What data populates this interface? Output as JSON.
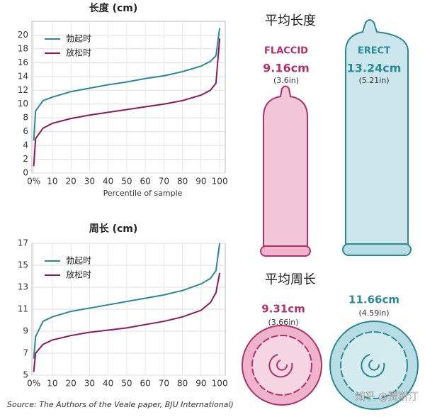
{
  "chart_data": [
    {
      "type": "line",
      "title": "长度 (cm)",
      "x_label": "Percentile of sample",
      "x": [
        0,
        1,
        5,
        10,
        20,
        30,
        40,
        50,
        60,
        70,
        80,
        90,
        95,
        98,
        100
      ],
      "series": [
        {
          "name": "勃起时",
          "color": "#2a8a94",
          "values": [
            4.7,
            9,
            10.5,
            11,
            11.8,
            12.3,
            12.8,
            13.2,
            13.7,
            14.1,
            14.7,
            15.5,
            16.2,
            17,
            21
          ]
        },
        {
          "name": "放松时",
          "color": "#8b1a5c",
          "values": [
            1,
            5,
            6.5,
            7.2,
            7.9,
            8.4,
            8.8,
            9.2,
            9.6,
            10,
            10.5,
            11.3,
            12,
            13,
            19.5
          ]
        }
      ],
      "xlim": [
        -1,
        103
      ],
      "ylim": [
        0,
        22
      ],
      "xticks": [
        {
          "value": 0,
          "label": "0%"
        },
        10,
        20,
        30,
        40,
        50,
        60,
        70,
        80,
        90,
        100
      ],
      "yticks": [
        0,
        2,
        4,
        6,
        8,
        10,
        12,
        14,
        16,
        18,
        20
      ],
      "grid": true,
      "legend": "upper left"
    },
    {
      "type": "line",
      "title": "周长 (cm)",
      "x": [
        0,
        1,
        5,
        10,
        20,
        30,
        40,
        50,
        60,
        70,
        80,
        90,
        95,
        98,
        100
      ],
      "series": [
        {
          "name": "勃起时",
          "color": "#2a8a94",
          "values": [
            6.5,
            8.5,
            9.9,
            10.3,
            10.8,
            11.1,
            11.4,
            11.7,
            12,
            12.3,
            12.7,
            13.3,
            13.8,
            14.5,
            17
          ]
        },
        {
          "name": "放松时",
          "color": "#8b1a5c",
          "values": [
            5.3,
            7,
            7.8,
            8.2,
            8.6,
            8.9,
            9.1,
            9.3,
            9.6,
            9.9,
            10.3,
            10.9,
            11.6,
            12.5,
            14.3
          ]
        }
      ],
      "xlim": [
        -1,
        103
      ],
      "ylim": [
        5,
        17
      ],
      "xticks": [
        {
          "value": 0,
          "label": "0%"
        },
        10,
        20,
        30,
        40,
        50,
        60,
        70,
        80,
        90,
        100
      ],
      "yticks": [
        5,
        7,
        9,
        11,
        13,
        15,
        17
      ],
      "grid": true,
      "legend": "upper left"
    }
  ],
  "length": {
    "title": "平均长度",
    "flaccid": {
      "label": "FLACCID",
      "cm": "9.16cm",
      "in": "(3.6in)"
    },
    "erect": {
      "label": "ERECT",
      "cm": "13.24cm",
      "in": "(5.21in)"
    }
  },
  "girth": {
    "title": "平均周长",
    "flaccid": {
      "cm": "9.31cm",
      "in": "(3.66in)"
    },
    "erect": {
      "cm": "11.66cm",
      "in": "(4.59in)"
    }
  },
  "source": "Source: The Authors of the Veale paper, BJU International)",
  "watermark": "知乎 @贾斯汀"
}
